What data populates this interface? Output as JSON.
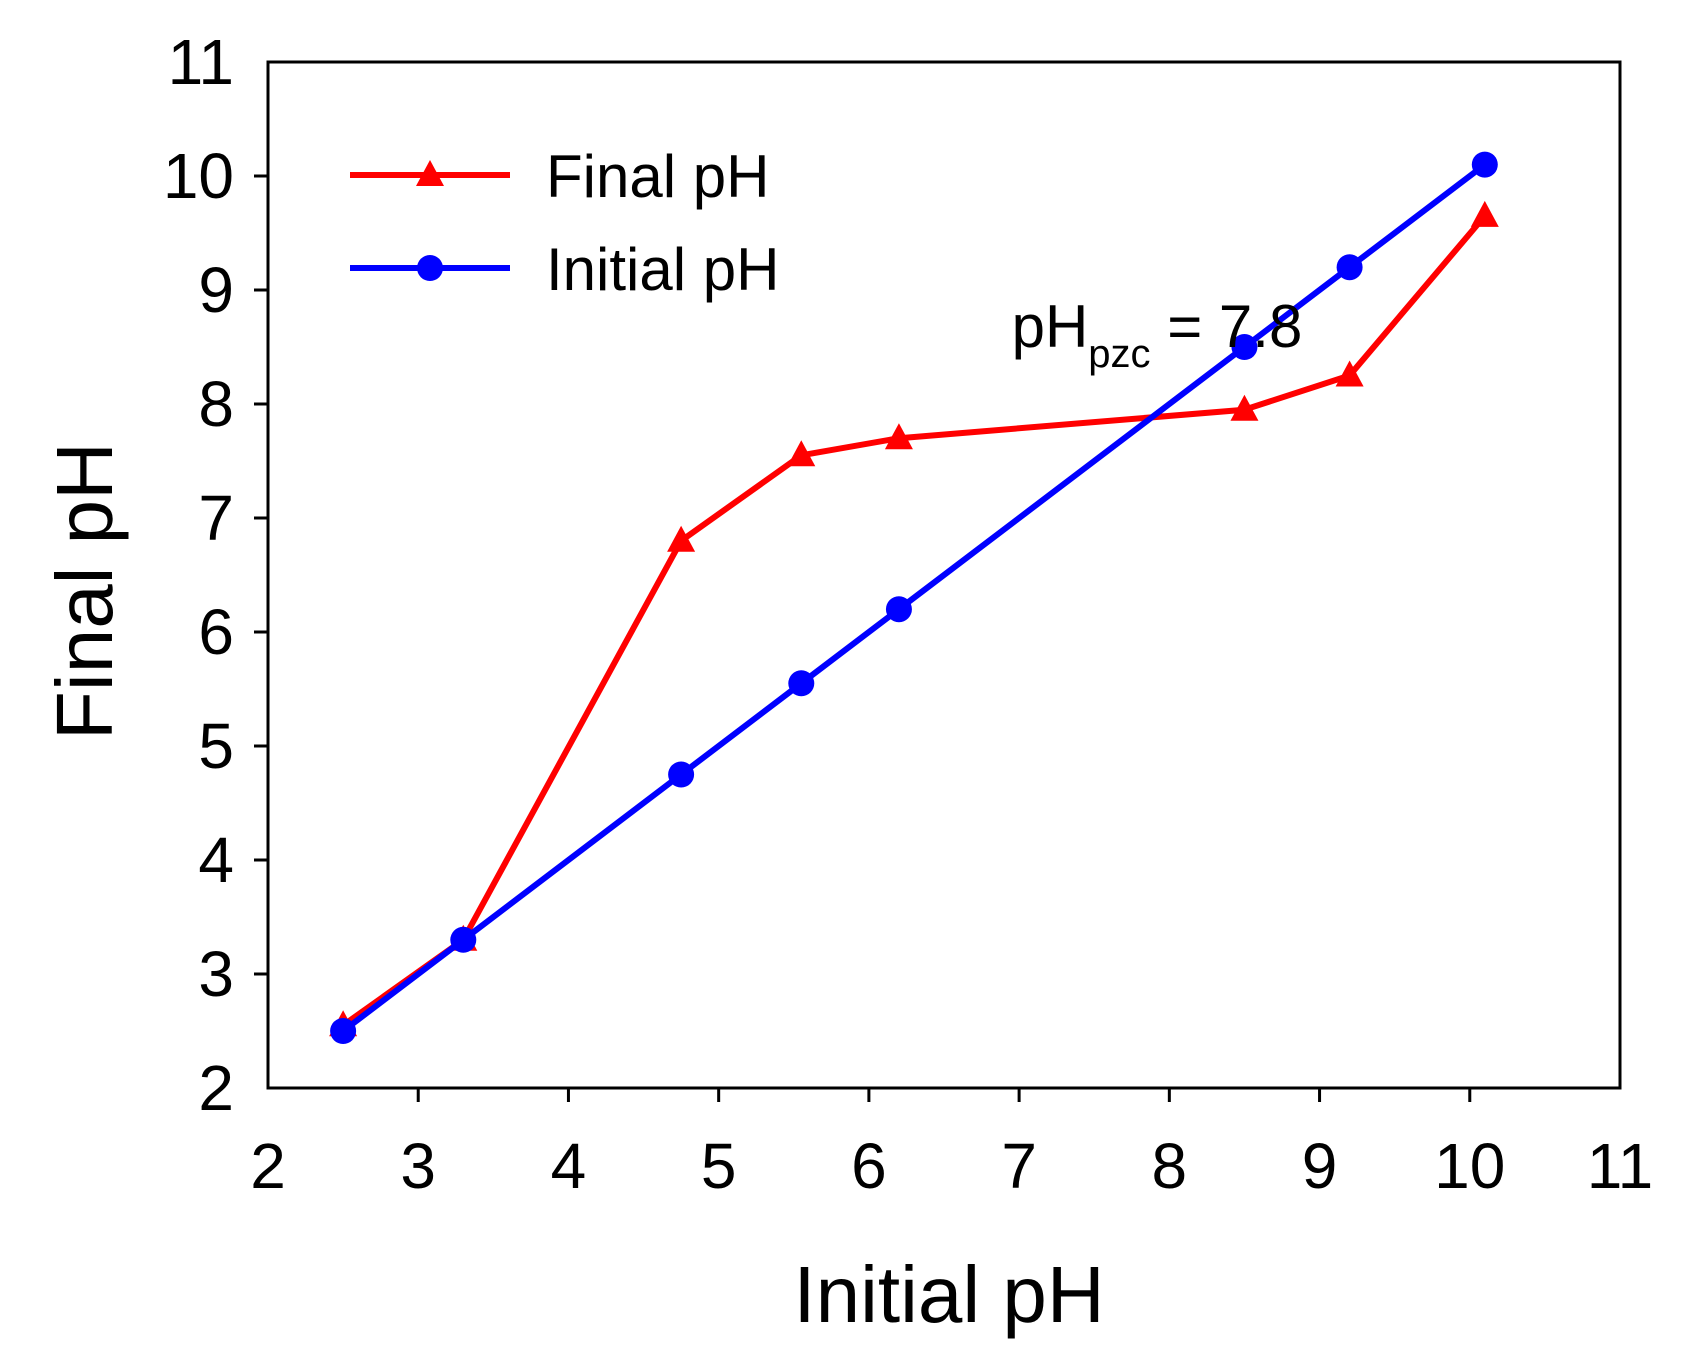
{
  "chart_data": {
    "type": "line",
    "xlabel": "Initial pH",
    "ylabel": "Final pH",
    "xlim": [
      2,
      11
    ],
    "ylim": [
      2,
      11
    ],
    "xticks": [
      2,
      3,
      4,
      5,
      6,
      7,
      8,
      9,
      10,
      11
    ],
    "yticks": [
      2,
      3,
      4,
      5,
      6,
      7,
      8,
      9,
      10,
      11
    ],
    "legend_position": "top-left",
    "series": [
      {
        "name": "Final pH",
        "color": "#ff0000",
        "marker": "triangle",
        "x": [
          2.5,
          3.3,
          4.75,
          5.55,
          6.2,
          8.5,
          9.2,
          10.1
        ],
        "y": [
          2.55,
          3.3,
          6.8,
          7.55,
          7.7,
          7.95,
          8.25,
          9.65
        ]
      },
      {
        "name": "Initial pH",
        "color": "#0000ff",
        "marker": "circle",
        "x": [
          2.5,
          3.3,
          4.75,
          5.55,
          6.2,
          8.5,
          9.2,
          10.1
        ],
        "y": [
          2.5,
          3.3,
          4.75,
          5.55,
          6.2,
          8.5,
          9.2,
          10.1
        ]
      }
    ],
    "annotation": {
      "main": "pH",
      "sub": "pzc",
      "rest": " = 7.8",
      "x": 6.95,
      "y": 8.5
    }
  }
}
